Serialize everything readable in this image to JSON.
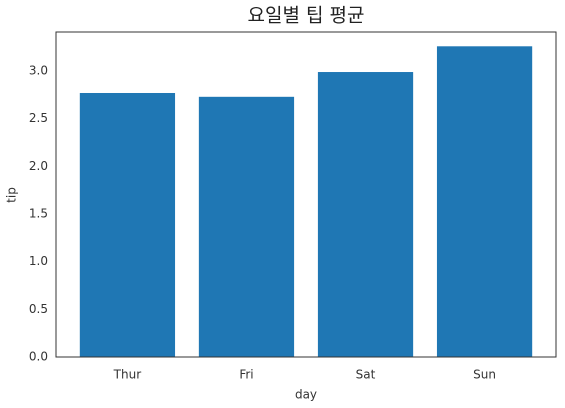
{
  "chart_data": {
    "type": "bar",
    "title": "요일별 팁 평균",
    "xlabel": "day",
    "ylabel": "tip",
    "categories": [
      "Thur",
      "Fri",
      "Sat",
      "Sun"
    ],
    "values": [
      2.77,
      2.73,
      2.99,
      3.26
    ],
    "color": "#1f77b4",
    "ylim": [
      0,
      3.41
    ],
    "yticks": [
      {
        "value": 0,
        "label": "0.0"
      },
      {
        "value": 0.5,
        "label": "0.5"
      },
      {
        "value": 1,
        "label": "1.0"
      },
      {
        "value": 1.5,
        "label": "1.5"
      },
      {
        "value": 2,
        "label": "2.0"
      },
      {
        "value": 2.5,
        "label": "2.5"
      },
      {
        "value": 3,
        "label": "3.0"
      }
    ]
  }
}
